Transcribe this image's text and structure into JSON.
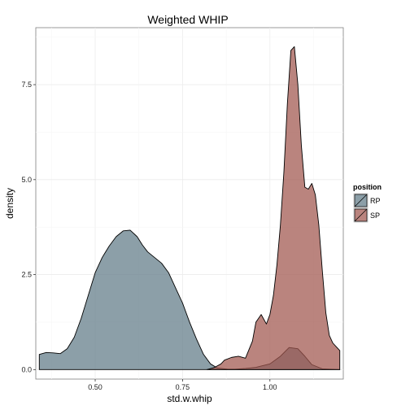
{
  "chart_data": {
    "type": "area",
    "title": "Weighted WHIP",
    "xlabel": "std.w.whip",
    "ylabel": "density",
    "xlim": [
      0.33,
      1.21
    ],
    "ylim": [
      -0.25,
      9.0
    ],
    "x_ticks": [
      0.5,
      0.75,
      1.0
    ],
    "x_tick_labels": [
      "0.50",
      "0.75",
      "1.00"
    ],
    "y_ticks": [
      0.0,
      2.5,
      5.0,
      7.5
    ],
    "y_tick_labels": [
      "0.0",
      "2.5",
      "5.0",
      "7.5"
    ],
    "grid": true,
    "legend": {
      "title": "position",
      "placement": "right",
      "entries": [
        {
          "label": "RP",
          "color": "#5f7a86"
        },
        {
          "label": "SP",
          "color": "#a0554c"
        }
      ]
    },
    "series": [
      {
        "name": "RP",
        "color": "#5f7a86",
        "x": [
          0.34,
          0.36,
          0.38,
          0.4,
          0.42,
          0.44,
          0.46,
          0.48,
          0.5,
          0.52,
          0.54,
          0.56,
          0.58,
          0.6,
          0.62,
          0.635,
          0.65,
          0.67,
          0.69,
          0.71,
          0.73,
          0.75,
          0.77,
          0.79,
          0.81,
          0.83,
          0.85,
          0.88,
          0.9,
          0.93,
          0.96,
          1.0,
          1.03,
          1.055,
          1.08,
          1.1,
          1.12,
          1.15,
          1.2
        ],
        "values": [
          0.4,
          0.45,
          0.44,
          0.42,
          0.55,
          0.85,
          1.35,
          1.95,
          2.55,
          2.95,
          3.25,
          3.5,
          3.65,
          3.67,
          3.5,
          3.28,
          3.1,
          2.95,
          2.8,
          2.55,
          2.15,
          1.75,
          1.25,
          0.8,
          0.4,
          0.15,
          0.04,
          0.01,
          0.01,
          0.03,
          0.06,
          0.15,
          0.35,
          0.58,
          0.55,
          0.35,
          0.13,
          0.02,
          0.0
        ]
      },
      {
        "name": "SP",
        "color": "#a0554c",
        "x": [
          0.82,
          0.84,
          0.86,
          0.87,
          0.89,
          0.91,
          0.93,
          0.95,
          0.96,
          0.975,
          0.99,
          1.0,
          1.01,
          1.02,
          1.03,
          1.04,
          1.05,
          1.06,
          1.07,
          1.08,
          1.09,
          1.1,
          1.11,
          1.12,
          1.13,
          1.14,
          1.15,
          1.16,
          1.17,
          1.18,
          1.19,
          1.2
        ],
        "values": [
          0.0,
          0.05,
          0.15,
          0.25,
          0.32,
          0.35,
          0.3,
          0.75,
          1.25,
          1.45,
          1.2,
          1.45,
          1.95,
          2.75,
          3.8,
          5.2,
          7.0,
          8.4,
          8.5,
          7.5,
          5.9,
          4.8,
          4.75,
          4.9,
          4.6,
          3.8,
          2.6,
          1.5,
          0.9,
          0.7,
          0.6,
          0.5
        ]
      }
    ]
  }
}
